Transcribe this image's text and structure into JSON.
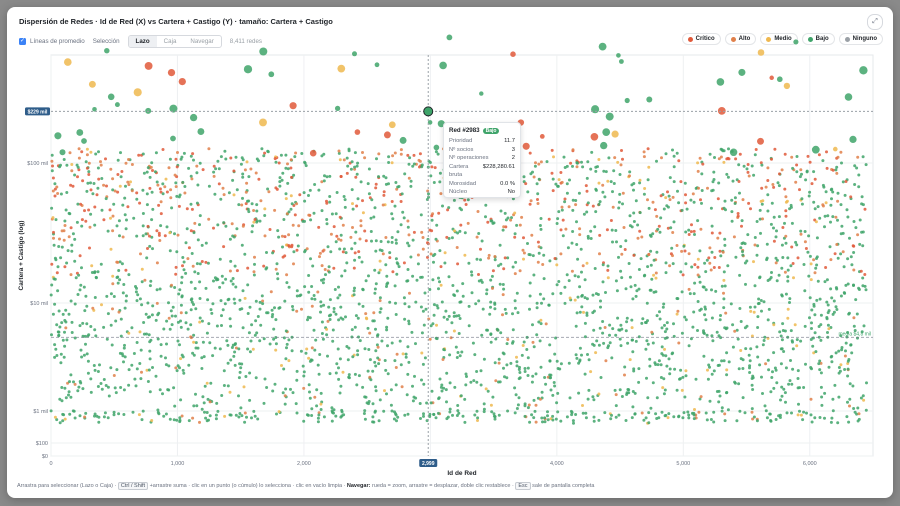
{
  "title": "Dispersión de Redes · Id de Red (X) vs Cartera + Castigo (Y) · tamaño: Cartera + Castigo",
  "controls": {
    "avg_lines_label": "Líneas de promedio",
    "selection_label": "Selección",
    "modes": [
      "Lazo",
      "Caja",
      "Navegar"
    ],
    "active_mode": "Lazo",
    "count_label": "8,411 redes"
  },
  "legend": [
    {
      "label": "Crítico",
      "color": "#e0593a"
    },
    {
      "label": "Alto",
      "color": "#e0804a"
    },
    {
      "label": "Medio",
      "color": "#efb84f"
    },
    {
      "label": "Bajo",
      "color": "#3fa46a"
    },
    {
      "label": "Ninguno",
      "color": "#9aa0a6"
    }
  ],
  "tooltip": {
    "title": "Red #2983",
    "badge": "Bajo",
    "rows": [
      {
        "label": "Prioridad",
        "value": "11.7"
      },
      {
        "label": "Nº socios",
        "value": "3"
      },
      {
        "label": "Nº operaciones",
        "value": "2"
      },
      {
        "label": "Cartera bruta",
        "value": "$228,280.61"
      },
      {
        "label": "Morosidad",
        "value": "0.0 %"
      },
      {
        "label": "Núcleo",
        "value": "No"
      }
    ]
  },
  "chart_data": {
    "type": "scatter",
    "xlabel": "Id de Red",
    "ylabel": "Cartera + Castigo (log)",
    "x_ticks": [
      "0",
      "1,000",
      "2,000",
      "3,000",
      "4,000",
      "5,000",
      "6,000"
    ],
    "y_ticks": [
      "$0",
      "$100",
      "$1 mil",
      "$10 mil",
      "$100 mil"
    ],
    "y_scale": "log",
    "xlim": [
      0,
      6500
    ],
    "crosshair_x_label": "2,999",
    "crosshair_y_label": "$229 mil",
    "avg_line_label": "media $4,8 mil",
    "highlighted_point": {
      "x": 2983,
      "y": 228280.61,
      "category": "Bajo"
    },
    "series": [
      {
        "name": "Crítico",
        "color": "#e0593a"
      },
      {
        "name": "Alto",
        "color": "#e0804a"
      },
      {
        "name": "Medio",
        "color": "#efb84f"
      },
      {
        "name": "Bajo",
        "color": "#3fa46a"
      },
      {
        "name": "Ninguno",
        "color": "#9aa0a6"
      }
    ]
  },
  "footer": {
    "text1": "Arrastra para seleccionar (Lazo o Caja) ·",
    "key1": "Ctrl / Shift",
    "text2": "+arrastre suma · clic en un punto (o cúmulo) lo selecciona · clic en vacío limpia ·",
    "bold": "Navegar:",
    "text3": "rueda = zoom, arrastre = desplazar, doble clic restablece ·",
    "key2": "Esc",
    "text4": "sale de pantalla completa"
  }
}
